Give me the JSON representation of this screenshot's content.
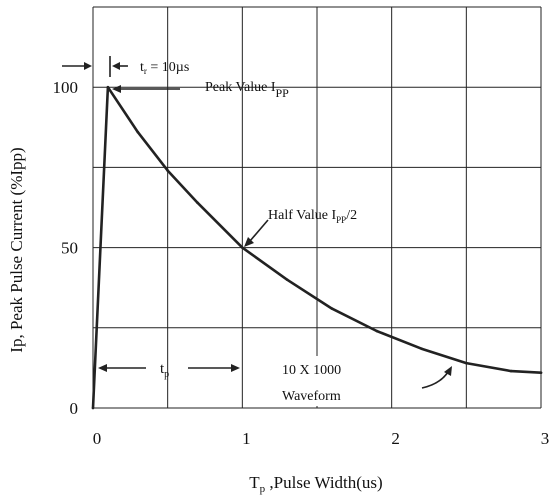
{
  "chart_data": {
    "type": "line",
    "title": "",
    "xlabel": "T",
    "xlabel_sub": "p",
    "xlabel_rest": " ,Pulse Width(us)",
    "ylabel": "Ip, Peak Pulse Current (%Ipp)",
    "xlim": [
      0,
      3
    ],
    "ylim": [
      0,
      125
    ],
    "x_ticks": [
      {
        "value": 0,
        "label": "0"
      },
      {
        "value": 1,
        "label": "1"
      },
      {
        "value": 2,
        "label": "2"
      },
      {
        "value": 3,
        "label": "3"
      }
    ],
    "y_ticks": [
      {
        "value": 0,
        "label": "0"
      },
      {
        "value": 50,
        "label": "50"
      },
      {
        "value": 100,
        "label": "100"
      }
    ],
    "grid": true,
    "series": [
      {
        "name": "",
        "x": [
          0,
          0.1,
          0.3,
          0.5,
          0.7,
          1.0,
          1.3,
          1.6,
          1.9,
          2.2,
          2.5,
          2.8,
          3.0
        ],
        "y": [
          0,
          100,
          86,
          74,
          64,
          50,
          40,
          31,
          24,
          18.5,
          14,
          11.5,
          11
        ]
      }
    ],
    "annotations": {
      "rise": {
        "prefix": "t",
        "sub": "r",
        "suffix": " = 10µs"
      },
      "peak": {
        "text": "Peak Value I",
        "sub": "PP"
      },
      "half": {
        "text": "Half Value I",
        "sub": "PP",
        "suffix": "/2"
      },
      "tp": {
        "text": "t",
        "sub": "p"
      },
      "waveform_line1": "10 X 1000",
      "waveform_line2": "Waveform"
    }
  }
}
